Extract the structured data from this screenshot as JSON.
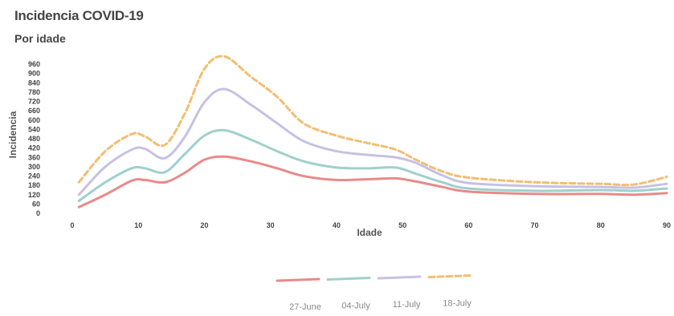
{
  "chart_data": {
    "type": "line",
    "title": "Incidencia COVID-19",
    "subtitle": "Por idade",
    "xlabel": "Idade",
    "ylabel": "Incidencia",
    "x_ticks": [
      "0",
      "10",
      "20",
      "30",
      "40",
      "50",
      "60",
      "70",
      "80",
      "90"
    ],
    "y_ticks": [
      "0",
      "60",
      "120",
      "180",
      "240",
      "300",
      "360",
      "420",
      "480",
      "540",
      "600",
      "660",
      "720",
      "780",
      "840",
      "900",
      "960"
    ],
    "xlim": [
      0,
      90
    ],
    "ylim": [
      0,
      960
    ],
    "grid": false,
    "legend_position": "bottom",
    "x": [
      1,
      5,
      9,
      11,
      14,
      17,
      20,
      23,
      27,
      31,
      35,
      40,
      45,
      49,
      52,
      56,
      60,
      70,
      80,
      85,
      90
    ],
    "series": [
      {
        "name": "27-June",
        "color": "#e88a8a",
        "dash": "",
        "values": [
          40,
          120,
          210,
          215,
          200,
          260,
          345,
          365,
          335,
          290,
          240,
          215,
          220,
          225,
          205,
          170,
          140,
          125,
          125,
          120,
          130
        ]
      },
      {
        "name": "04-July",
        "color": "#9fd0cc",
        "dash": "",
        "values": [
          80,
          200,
          290,
          290,
          265,
          380,
          500,
          535,
          475,
          400,
          335,
          295,
          290,
          295,
          255,
          200,
          160,
          145,
          150,
          145,
          160
        ]
      },
      {
        "name": "11-July",
        "color": "#c8c0e4",
        "dash": "",
        "values": [
          120,
          300,
          410,
          415,
          355,
          490,
          715,
          800,
          700,
          580,
          465,
          400,
          375,
          360,
          325,
          245,
          195,
          175,
          170,
          165,
          190
        ]
      },
      {
        "name": "18-July",
        "color": "#f2be72",
        "dash": "7 4",
        "values": [
          200,
          400,
          510,
          495,
          440,
          640,
          930,
          1010,
          880,
          750,
          580,
          500,
          450,
          410,
          345,
          270,
          230,
          200,
          190,
          185,
          235
        ]
      }
    ]
  }
}
